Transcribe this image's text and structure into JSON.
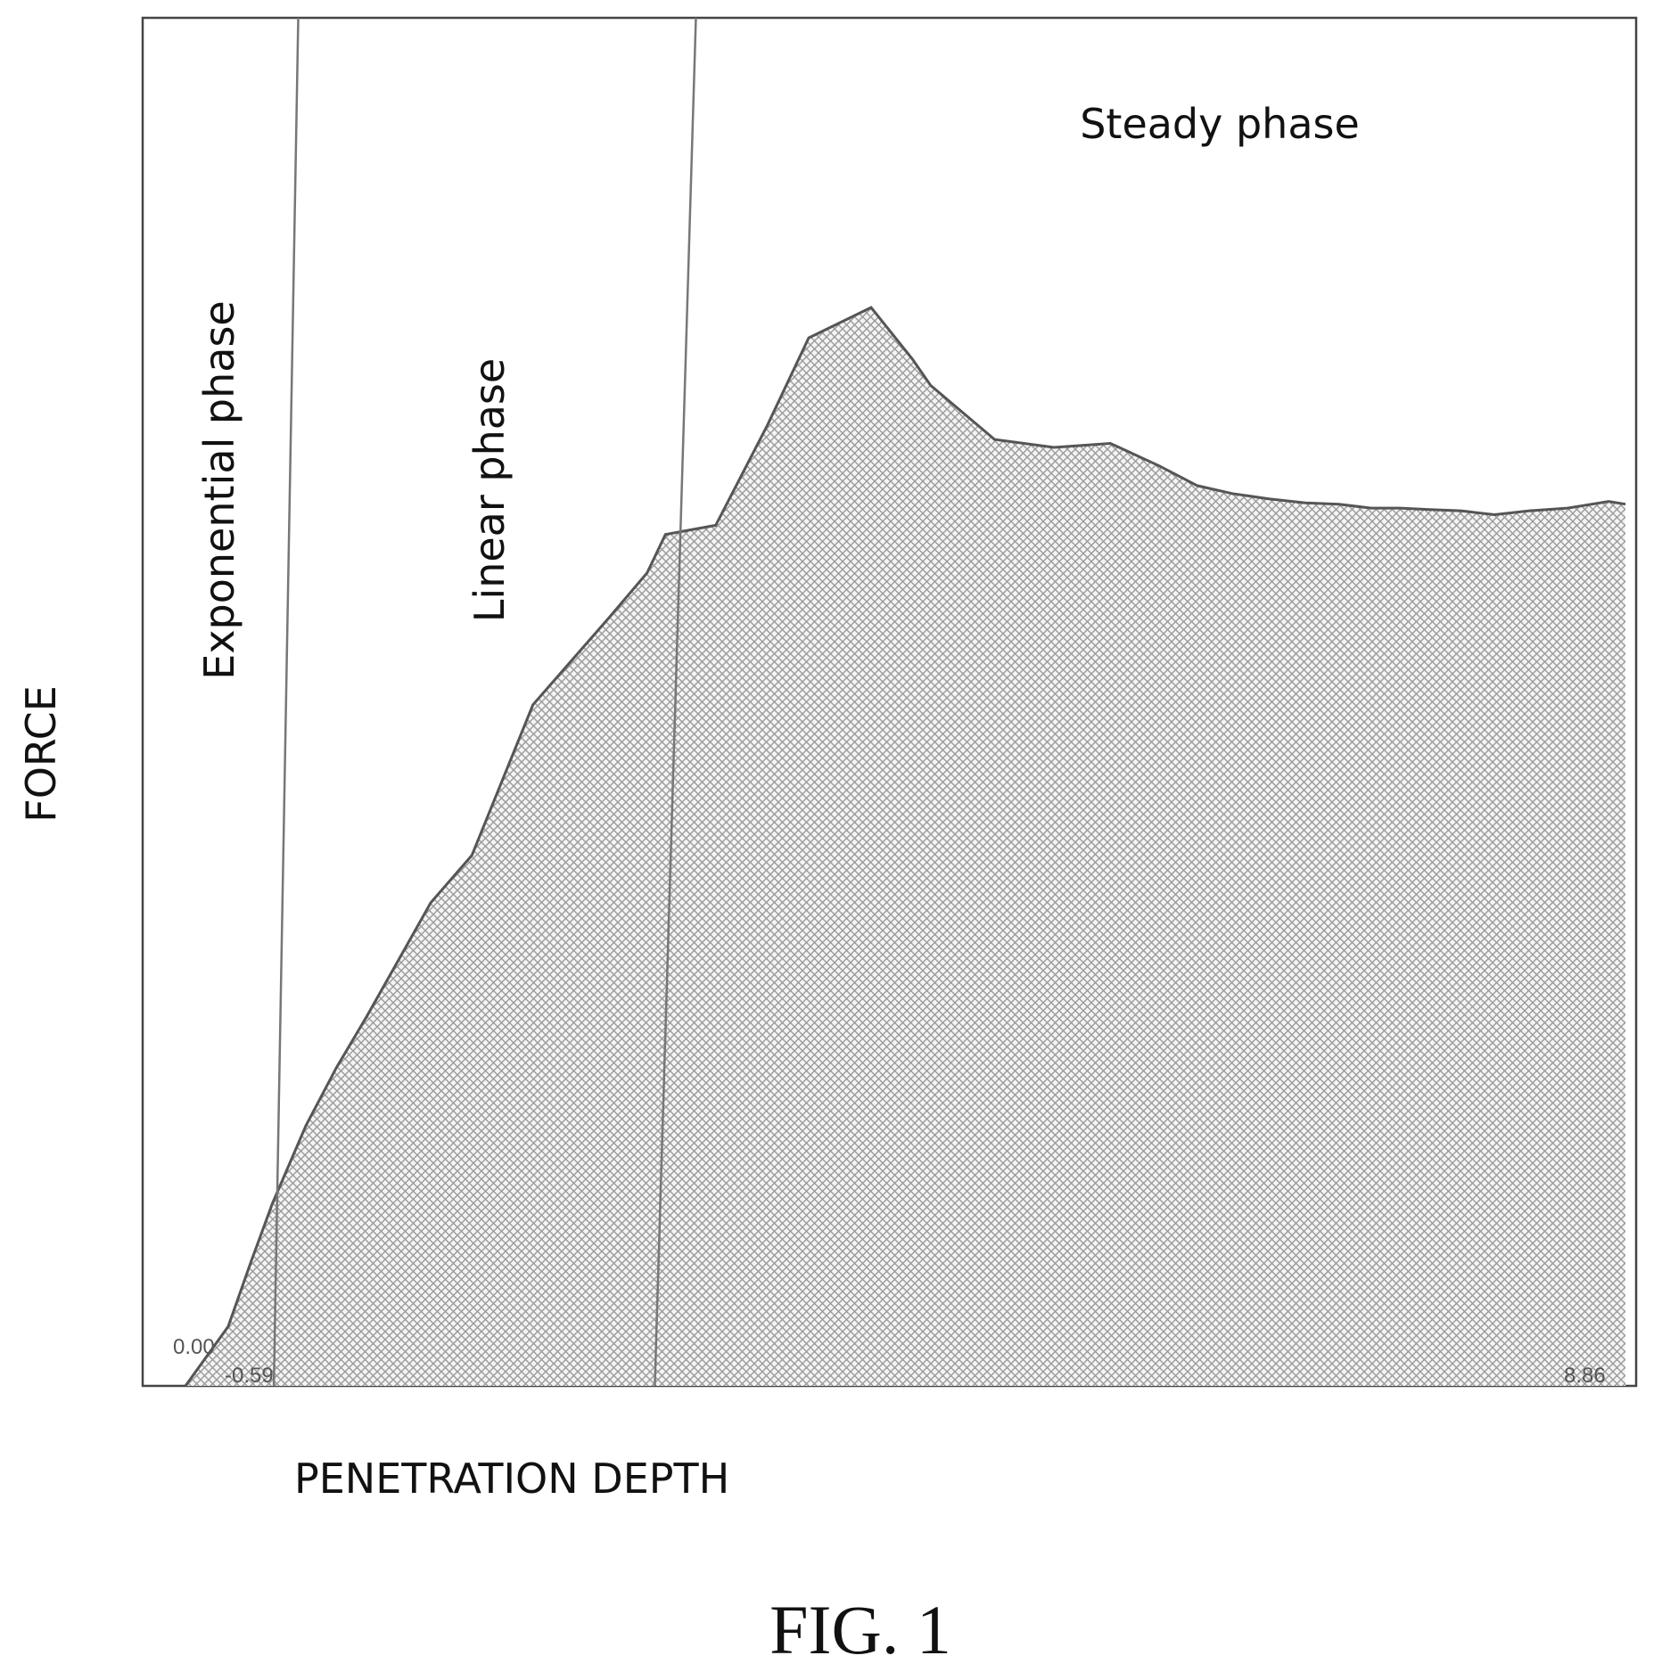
{
  "chart_data": {
    "type": "area",
    "title": "",
    "xlabel": "PENETRATION DEPTH",
    "ylabel": "FORCE",
    "x_tick_labels": {
      "left": "-0.59",
      "right": "8.86"
    },
    "y_tick_labels": {
      "bottom": "0.00"
    },
    "xlim": [
      -0.59,
      8.86
    ],
    "ylim": [
      0,
      1
    ],
    "fill": "crosshatch",
    "series": [
      {
        "x": [
          -0.59,
          -0.31,
          -0.16,
          -0.02,
          0.2,
          0.4,
          0.6,
          1.02,
          1.29,
          1.69,
          2.19,
          2.44,
          2.56,
          2.89,
          3.23,
          3.5,
          3.91,
          4.18,
          4.3,
          4.72,
          5.11,
          5.48,
          5.8,
          6.05,
          6.28,
          6.52,
          6.76,
          6.98,
          7.19,
          7.38,
          7.56,
          7.78,
          8.0,
          8.23,
          8.48,
          8.75,
          8.86
        ],
        "y": [
          0.0,
          0.045,
          0.094,
          0.138,
          0.197,
          0.241,
          0.28,
          0.366,
          0.402,
          0.516,
          0.582,
          0.616,
          0.645,
          0.652,
          0.728,
          0.794,
          0.817,
          0.778,
          0.758,
          0.717,
          0.711,
          0.714,
          0.697,
          0.682,
          0.676,
          0.672,
          0.669,
          0.668,
          0.665,
          0.665,
          0.664,
          0.663,
          0.66,
          0.663,
          0.665,
          0.67,
          0.668
        ]
      }
    ],
    "phase_labels": [
      "Exponential phase",
      "Linear phase",
      "Steady phase"
    ],
    "phase_boundaries": [
      {
        "bottom_x": -0.01,
        "top_x": 0.15
      },
      {
        "bottom_x": 2.49,
        "top_x": 2.76
      }
    ]
  },
  "caption": "FIG. 1",
  "colors": {
    "fill": "#bcbcbc",
    "line": "#555555",
    "axis": "#444444",
    "boundary": "#777777"
  }
}
